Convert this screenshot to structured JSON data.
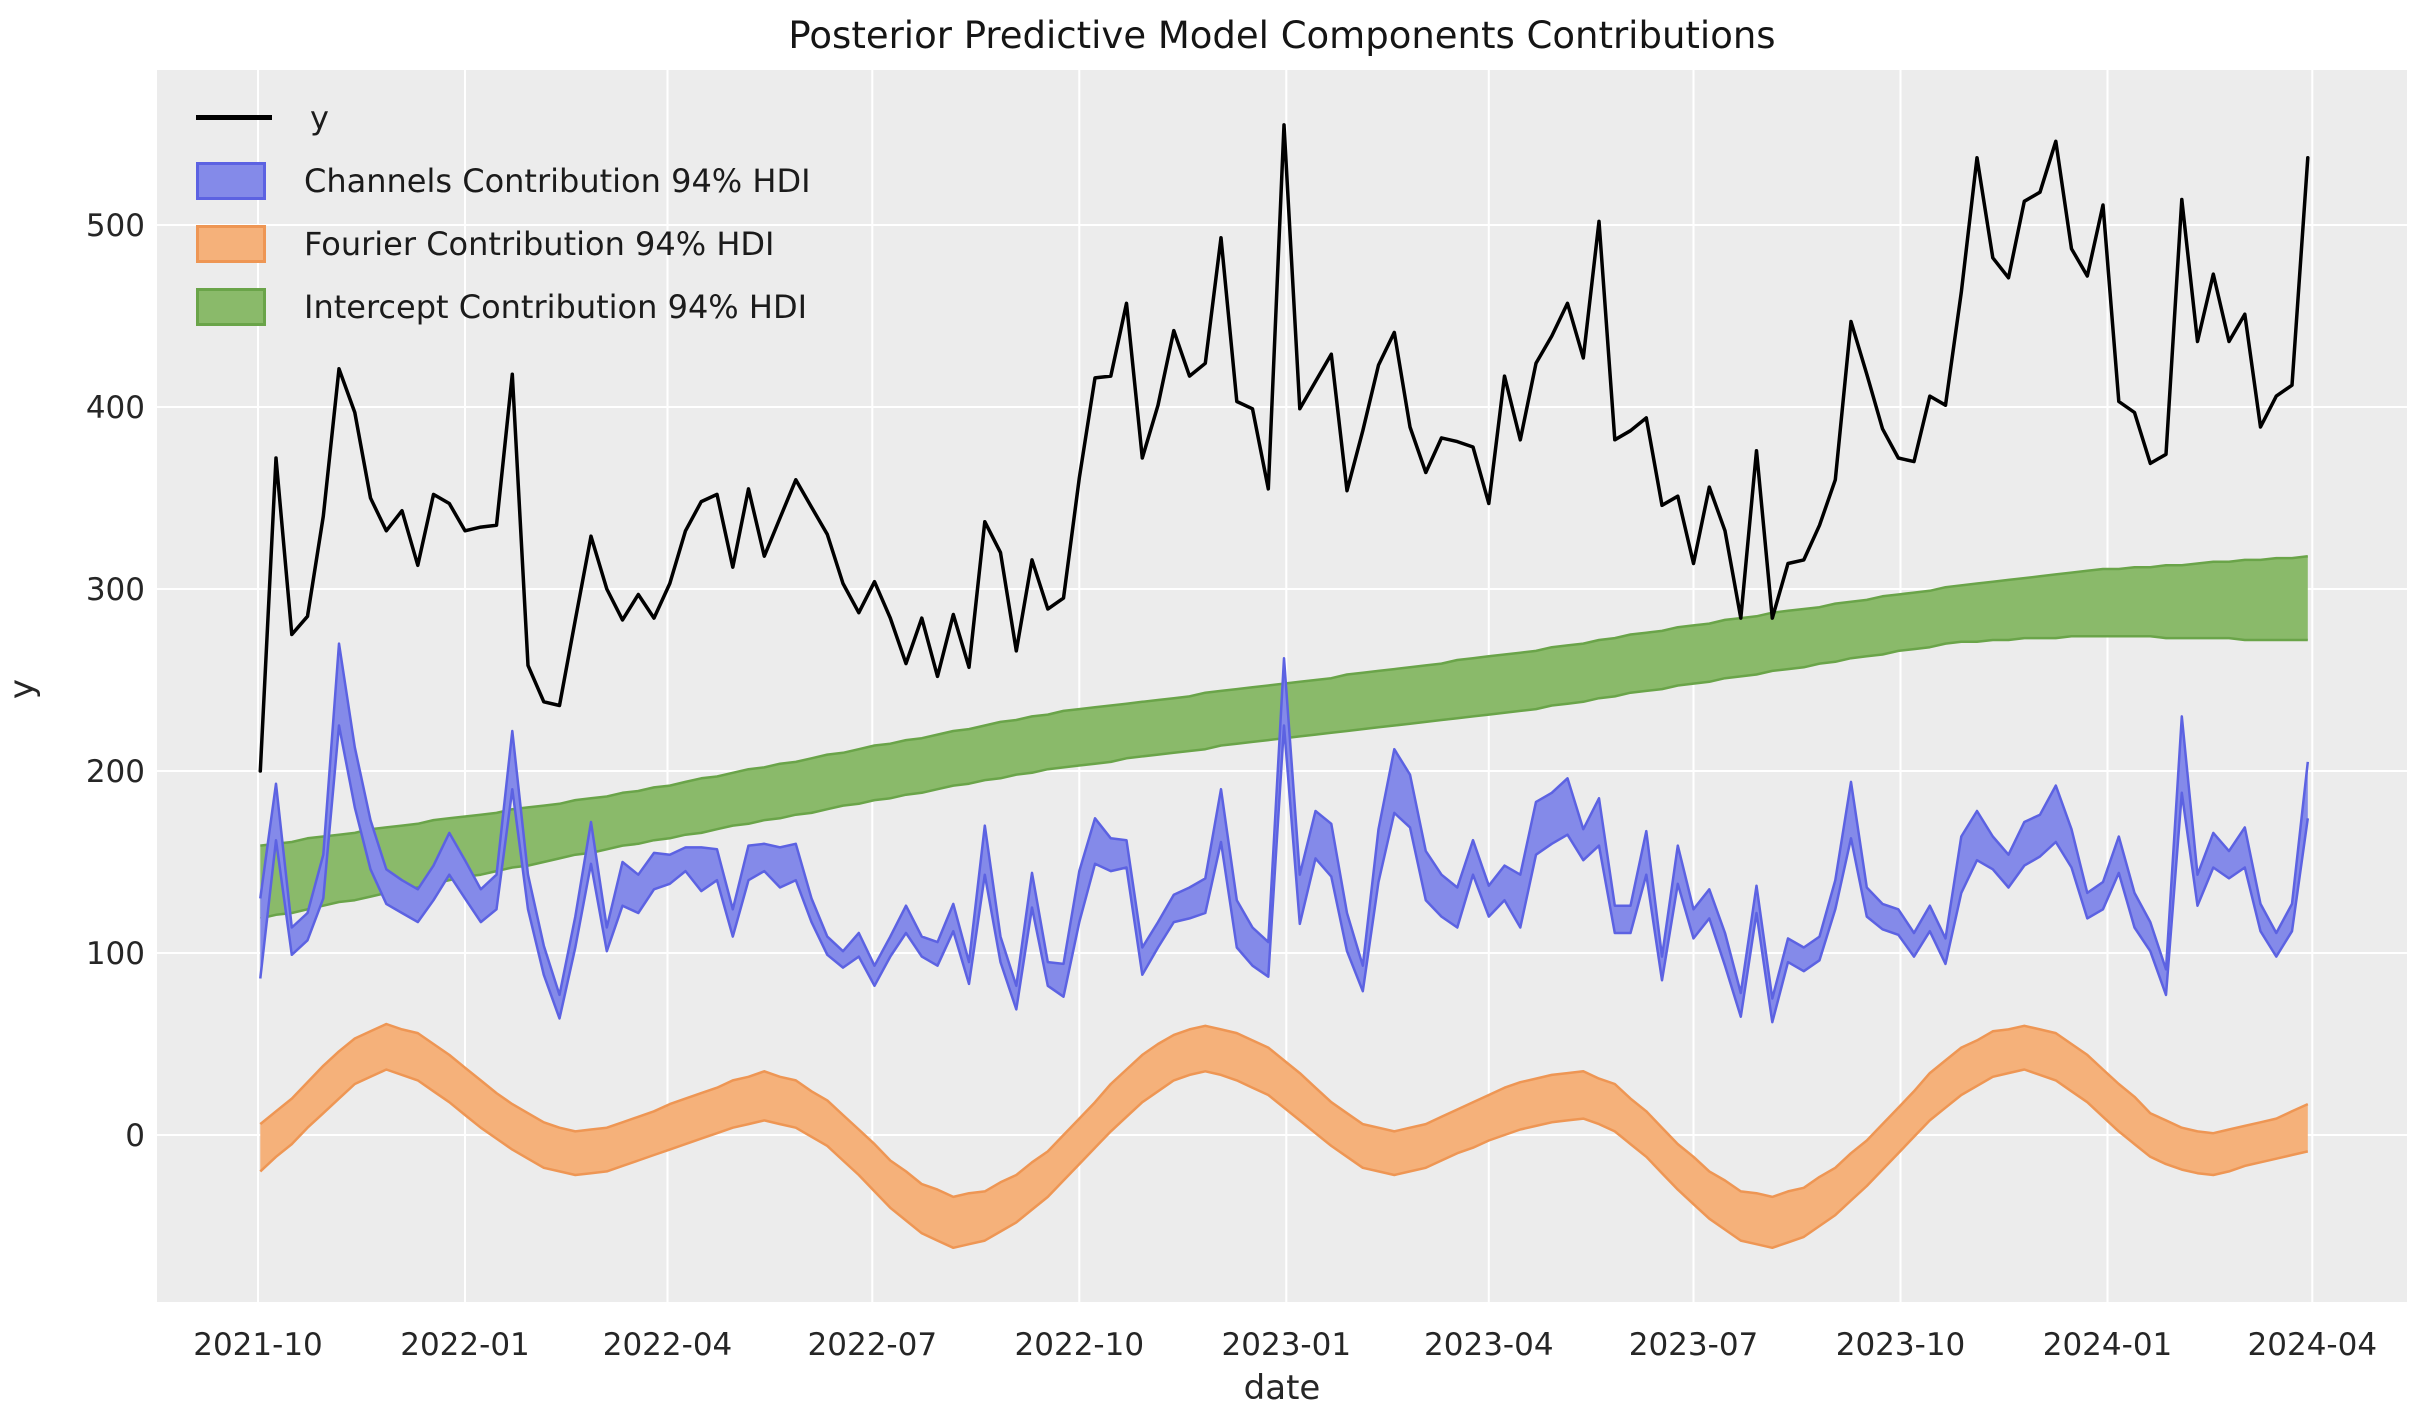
{
  "chart_data": {
    "type": "line",
    "title": "Posterior Predictive Model Components Contributions",
    "xlabel": "date",
    "ylabel": "y",
    "start_date": "2021-10-02",
    "interval_days": 7,
    "n_points": 131,
    "background_color": "#ececec",
    "grid_color": "#ffffff",
    "tick_color": "#262626",
    "x_ticks": [
      {
        "date": "2021-10-01",
        "label": "2021-10"
      },
      {
        "date": "2022-01-01",
        "label": "2022-01"
      },
      {
        "date": "2022-04-01",
        "label": "2022-04"
      },
      {
        "date": "2022-07-01",
        "label": "2022-07"
      },
      {
        "date": "2022-10-01",
        "label": "2022-10"
      },
      {
        "date": "2023-01-01",
        "label": "2023-01"
      },
      {
        "date": "2023-04-01",
        "label": "2023-04"
      },
      {
        "date": "2023-07-01",
        "label": "2023-07"
      },
      {
        "date": "2023-10-01",
        "label": "2023-10"
      },
      {
        "date": "2024-01-01",
        "label": "2024-01"
      },
      {
        "date": "2024-04-01",
        "label": "2024-04"
      }
    ],
    "y_ticks": [
      0,
      100,
      200,
      300,
      400,
      500
    ],
    "ylim": [
      -92,
      585
    ],
    "grid": true,
    "legend_position": "upper left",
    "legend": [
      {
        "key": "y",
        "label": "y",
        "swatch": "line",
        "color": "#000000",
        "edge": "#000000"
      },
      {
        "key": "channels",
        "label": "Channels Contribution 94% HDI",
        "swatch": "patch",
        "color": "#848ae9",
        "edge": "#5c62e2"
      },
      {
        "key": "fourier",
        "label": "Fourier Contribution 94% HDI",
        "swatch": "patch",
        "color": "#f5b17a",
        "edge": "#ee9654"
      },
      {
        "key": "intercept",
        "label": "Intercept Contribution 94% HDI",
        "swatch": "patch",
        "color": "#8aba6a",
        "edge": "#6aa449"
      }
    ],
    "series": [
      {
        "key": "fourier",
        "name": "Fourier Contribution 94% HDI",
        "kind": "band",
        "fill": "#f5b17a",
        "edge": "#ee9654",
        "lower": [
          -20,
          -12,
          -5,
          4,
          12,
          20,
          28,
          32,
          36,
          33,
          30,
          24,
          18,
          11,
          4,
          -2,
          -8,
          -13,
          -18,
          -20,
          -22,
          -21,
          -20,
          -17,
          -14,
          -11,
          -8,
          -5,
          -2,
          1,
          4,
          6,
          8,
          6,
          4,
          -1,
          -6,
          -14,
          -22,
          -31,
          -40,
          -47,
          -54,
          -58,
          -62,
          -60,
          -58,
          -53,
          -48,
          -41,
          -34,
          -25,
          -16,
          -7,
          2,
          10,
          18,
          24,
          30,
          33,
          35,
          33,
          30,
          26,
          22,
          15,
          8,
          1,
          -6,
          -12,
          -18,
          -20,
          -22,
          -20,
          -18,
          -14,
          -10,
          -7,
          -3,
          0,
          3,
          5,
          7,
          8,
          9,
          6,
          2,
          -5,
          -12,
          -21,
          -30,
          -38,
          -46,
          -52,
          -58,
          -60,
          -62,
          -59,
          -56,
          -50,
          -44,
          -36,
          -28,
          -19,
          -10,
          -1,
          8,
          15,
          22,
          27,
          32,
          34,
          36,
          33,
          30,
          24,
          18,
          10,
          2,
          -5,
          -12,
          -16,
          -19,
          -21,
          -22,
          -20,
          -17,
          -15,
          -13,
          -11,
          -9
        ],
        "upper": [
          6,
          13,
          20,
          29,
          38,
          46,
          53,
          57,
          61,
          58,
          56,
          50,
          44,
          37,
          30,
          23,
          17,
          12,
          7,
          4,
          2,
          3,
          4,
          7,
          10,
          13,
          17,
          20,
          23,
          26,
          30,
          32,
          35,
          32,
          30,
          24,
          19,
          11,
          3,
          -5,
          -14,
          -20,
          -27,
          -30,
          -34,
          -32,
          -31,
          -26,
          -22,
          -15,
          -9,
          0,
          9,
          18,
          28,
          36,
          44,
          50,
          55,
          58,
          60,
          58,
          56,
          52,
          48,
          41,
          34,
          26,
          18,
          12,
          6,
          4,
          2,
          4,
          6,
          10,
          14,
          18,
          22,
          26,
          29,
          31,
          33,
          34,
          35,
          31,
          28,
          20,
          13,
          4,
          -5,
          -12,
          -20,
          -25,
          -31,
          -32,
          -34,
          -31,
          -29,
          -23,
          -18,
          -10,
          -3,
          6,
          15,
          24,
          34,
          41,
          48,
          52,
          57,
          58,
          60,
          58,
          56,
          50,
          44,
          36,
          28,
          21,
          12,
          8,
          4,
          2,
          1,
          3,
          5,
          7,
          9,
          13,
          17
        ]
      },
      {
        "key": "intercept",
        "name": "Intercept Contribution 94% HDI",
        "kind": "band",
        "fill": "#8aba6a",
        "edge": "#6aa449",
        "lower": [
          119,
          121,
          122,
          124,
          126,
          128,
          129,
          131,
          133,
          135,
          136,
          138,
          140,
          142,
          143,
          145,
          147,
          148,
          150,
          152,
          154,
          155,
          157,
          159,
          160,
          162,
          163,
          165,
          166,
          168,
          170,
          171,
          173,
          174,
          176,
          177,
          179,
          181,
          182,
          184,
          185,
          187,
          188,
          190,
          192,
          193,
          195,
          196,
          198,
          199,
          201,
          202,
          203,
          204,
          205,
          207,
          208,
          209,
          210,
          211,
          212,
          214,
          215,
          216,
          217,
          218,
          219,
          220,
          221,
          222,
          223,
          224,
          225,
          226,
          227,
          228,
          229,
          230,
          231,
          232,
          233,
          234,
          236,
          237,
          238,
          240,
          241,
          243,
          244,
          245,
          247,
          248,
          249,
          251,
          252,
          253,
          255,
          256,
          257,
          259,
          260,
          262,
          263,
          264,
          266,
          267,
          268,
          270,
          271,
          271,
          272,
          272,
          273,
          273,
          273,
          274,
          274,
          274,
          274,
          274,
          274,
          273,
          273,
          273,
          273,
          273,
          272,
          272,
          272,
          272,
          272
        ],
        "upper": [
          159,
          160,
          161,
          163,
          164,
          165,
          166,
          168,
          169,
          170,
          171,
          173,
          174,
          175,
          176,
          177,
          179,
          180,
          181,
          182,
          184,
          185,
          186,
          188,
          189,
          191,
          192,
          194,
          196,
          197,
          199,
          201,
          202,
          204,
          205,
          207,
          209,
          210,
          212,
          214,
          215,
          217,
          218,
          220,
          222,
          223,
          225,
          227,
          228,
          230,
          231,
          233,
          234,
          235,
          236,
          237,
          238,
          239,
          240,
          241,
          243,
          244,
          245,
          246,
          247,
          248,
          249,
          250,
          251,
          253,
          254,
          255,
          256,
          257,
          258,
          259,
          261,
          262,
          263,
          264,
          265,
          266,
          268,
          269,
          270,
          272,
          273,
          275,
          276,
          277,
          279,
          280,
          281,
          283,
          284,
          285,
          287,
          288,
          289,
          290,
          292,
          293,
          294,
          296,
          297,
          298,
          299,
          301,
          302,
          303,
          304,
          305,
          306,
          307,
          308,
          309,
          310,
          311,
          311,
          312,
          312,
          313,
          313,
          314,
          315,
          315,
          316,
          316,
          317,
          317,
          318
        ]
      },
      {
        "key": "channels",
        "name": "Channels Contribution 94% HDI",
        "kind": "band",
        "fill": "#848ae9",
        "edge": "#5c62e2",
        "lower": [
          86,
          162,
          99,
          107,
          130,
          225,
          180,
          146,
          127,
          122,
          117,
          129,
          143,
          130,
          117,
          124,
          190,
          124,
          88,
          64,
          103,
          149,
          101,
          126,
          122,
          135,
          138,
          145,
          134,
          140,
          109,
          140,
          145,
          136,
          140,
          117,
          99,
          92,
          98,
          82,
          98,
          111,
          98,
          93,
          112,
          83,
          143,
          95,
          69,
          125,
          82,
          76,
          117,
          149,
          145,
          147,
          88,
          103,
          117,
          119,
          122,
          161,
          103,
          93,
          87,
          225,
          116,
          152,
          142,
          101,
          79,
          139,
          177,
          169,
          129,
          120,
          114,
          143,
          120,
          129,
          114,
          154,
          160,
          165,
          151,
          159,
          111,
          111,
          143,
          85,
          138,
          108,
          119,
          93,
          65,
          122,
          62,
          95,
          90,
          96,
          124,
          163,
          120,
          113,
          110,
          98,
          112,
          94,
          133,
          151,
          146,
          136,
          148,
          153,
          161,
          147,
          119,
          124,
          144,
          114,
          101,
          77,
          188,
          126,
          147,
          141,
          147,
          112,
          98,
          112,
          174
        ],
        "upper": [
          130,
          193,
          114,
          122,
          154,
          270,
          213,
          173,
          146,
          140,
          135,
          148,
          166,
          151,
          135,
          143,
          222,
          143,
          104,
          77,
          120,
          172,
          114,
          150,
          143,
          155,
          154,
          158,
          158,
          157,
          124,
          159,
          160,
          158,
          160,
          130,
          109,
          101,
          111,
          93,
          109,
          126,
          109,
          106,
          127,
          95,
          170,
          109,
          82,
          144,
          95,
          94,
          145,
          174,
          163,
          162,
          103,
          117,
          132,
          136,
          141,
          190,
          129,
          114,
          106,
          262,
          143,
          178,
          171,
          122,
          93,
          168,
          212,
          198,
          156,
          143,
          136,
          162,
          137,
          148,
          143,
          183,
          188,
          196,
          168,
          185,
          126,
          126,
          167,
          98,
          159,
          124,
          135,
          111,
          78,
          137,
          75,
          108,
          103,
          109,
          140,
          194,
          136,
          127,
          124,
          111,
          126,
          108,
          164,
          178,
          164,
          154,
          172,
          176,
          192,
          168,
          133,
          139,
          164,
          133,
          117,
          91,
          230,
          143,
          166,
          156,
          169,
          127,
          111,
          127,
          205
        ]
      },
      {
        "key": "y",
        "name": "y",
        "kind": "line",
        "color": "#000000",
        "values": [
          200,
          372,
          275,
          285,
          340,
          421,
          397,
          350,
          332,
          343,
          313,
          352,
          347,
          332,
          334,
          335,
          418,
          258,
          238,
          236,
          283,
          329,
          300,
          283,
          297,
          284,
          303,
          332,
          348,
          352,
          312,
          355,
          318,
          339,
          360,
          345,
          330,
          303,
          287,
          304,
          284,
          259,
          284,
          252,
          286,
          257,
          337,
          320,
          266,
          316,
          289,
          295,
          361,
          416,
          417,
          457,
          372,
          401,
          442,
          417,
          424,
          493,
          403,
          399,
          355,
          555,
          399,
          414,
          429,
          354,
          387,
          423,
          441,
          389,
          364,
          383,
          381,
          378,
          347,
          417,
          382,
          424,
          439,
          457,
          427,
          502,
          382,
          387,
          394,
          346,
          351,
          314,
          356,
          332,
          284,
          376,
          284,
          314,
          316,
          335,
          360,
          447,
          418,
          388,
          372,
          370,
          406,
          401,
          463,
          537,
          482,
          471,
          513,
          518,
          546,
          487,
          472,
          511,
          403,
          397,
          369,
          374,
          514,
          436,
          473,
          436,
          451,
          389,
          406,
          412,
          537
        ]
      }
    ]
  }
}
